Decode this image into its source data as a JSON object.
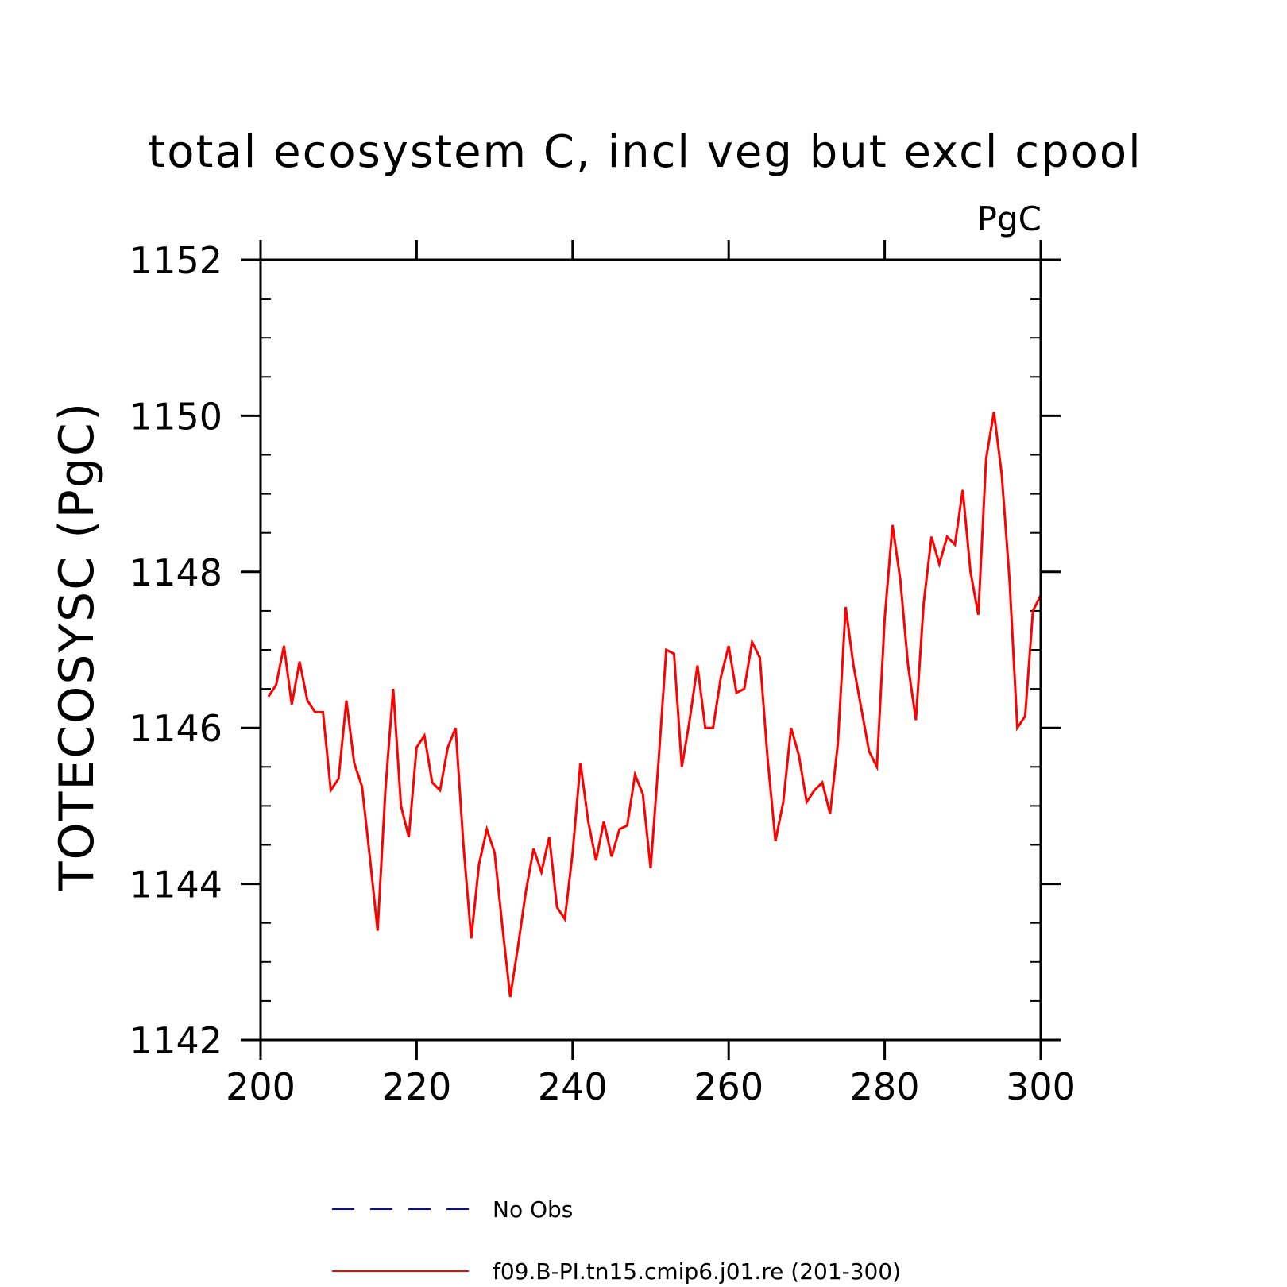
{
  "chart_data": {
    "type": "line",
    "title": "total ecosystem C, incl veg but excl cpool",
    "units": "PgC",
    "xlabel": "",
    "ylabel": "TOTECOSYSC  (PgC)",
    "xlim": [
      200,
      300
    ],
    "ylim": [
      1142,
      1152
    ],
    "x_major_ticks": [
      200,
      220,
      240,
      260,
      280,
      300
    ],
    "y_major_ticks": [
      1142,
      1144,
      1146,
      1148,
      1150,
      1152
    ],
    "y_minor_step": 0.5,
    "grid": false,
    "legend_position": "bottom",
    "colors": {
      "model": "#ff0000",
      "obs": "#0000ff"
    },
    "series": [
      {
        "name": "No Obs",
        "style": "dashed",
        "x": [],
        "values": []
      },
      {
        "name": "f09.B-PI.tn15.cmip6.j01.re (201-300)",
        "style": "solid",
        "x": [
          201,
          202,
          203,
          204,
          205,
          206,
          207,
          208,
          209,
          210,
          211,
          212,
          213,
          214,
          215,
          216,
          217,
          218,
          219,
          220,
          221,
          222,
          223,
          224,
          225,
          226,
          227,
          228,
          229,
          230,
          231,
          232,
          233,
          234,
          235,
          236,
          237,
          238,
          239,
          240,
          241,
          242,
          243,
          244,
          245,
          246,
          247,
          248,
          249,
          250,
          251,
          252,
          253,
          254,
          255,
          256,
          257,
          258,
          259,
          260,
          261,
          262,
          263,
          264,
          265,
          266,
          267,
          268,
          269,
          270,
          271,
          272,
          273,
          274,
          275,
          276,
          277,
          278,
          279,
          280,
          281,
          282,
          283,
          284,
          285,
          286,
          287,
          288,
          289,
          290,
          291,
          292,
          293,
          294,
          295,
          296,
          297,
          298,
          299,
          300
        ],
        "values": [
          1146.4,
          1146.55,
          1147.05,
          1146.3,
          1146.85,
          1146.35,
          1146.2,
          1146.2,
          1145.2,
          1145.35,
          1146.35,
          1145.55,
          1145.25,
          1144.35,
          1143.4,
          1145.2,
          1146.5,
          1145.0,
          1144.6,
          1145.75,
          1145.9,
          1145.3,
          1145.2,
          1145.75,
          1146.0,
          1144.5,
          1143.3,
          1144.25,
          1144.7,
          1144.4,
          1143.45,
          1142.55,
          1143.2,
          1143.9,
          1144.45,
          1144.15,
          1144.6,
          1143.7,
          1143.55,
          1144.4,
          1145.55,
          1144.8,
          1144.3,
          1144.8,
          1144.35,
          1144.7,
          1144.75,
          1145.4,
          1145.15,
          1144.2,
          1145.55,
          1147.0,
          1146.95,
          1145.5,
          1146.1,
          1146.8,
          1146.0,
          1146.0,
          1146.65,
          1147.05,
          1146.45,
          1146.5,
          1147.1,
          1146.9,
          1145.6,
          1144.55,
          1145.05,
          1146.0,
          1145.65,
          1145.05,
          1145.2,
          1145.3,
          1144.9,
          1145.8,
          1147.55,
          1146.8,
          1146.25,
          1145.7,
          1145.5,
          1147.4,
          1148.6,
          1147.9,
          1146.8,
          1146.1,
          1147.6,
          1148.45,
          1148.1,
          1148.45,
          1148.35,
          1149.05,
          1148.0,
          1147.45,
          1149.45,
          1150.05,
          1149.25,
          1147.9,
          1146.0,
          1146.15,
          1147.5,
          1147.7
        ]
      }
    ]
  }
}
